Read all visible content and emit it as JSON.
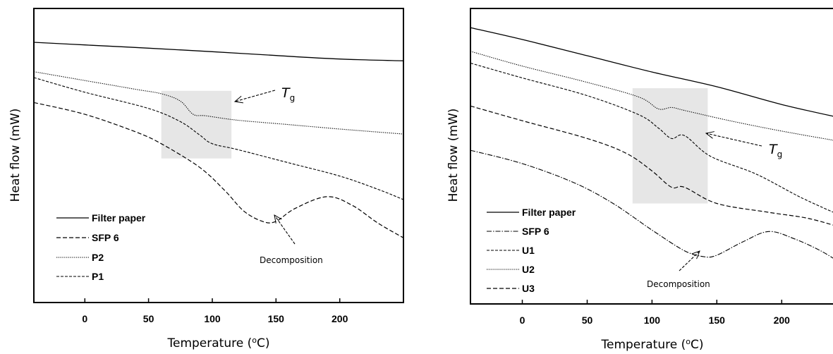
{
  "chart_data": [
    {
      "type": "line",
      "xlabel": "Temperature (°C)",
      "ylabel": "Heat flow (mW)",
      "xticks": [
        0,
        50,
        100,
        150,
        200
      ],
      "xlim": [
        -40,
        250
      ],
      "ylim": [
        0,
        100
      ],
      "ylabel_parts": {
        "text": "Heat flow (mW)"
      },
      "xlabel_parts": {
        "pre": "Temperature (",
        "sup": "o",
        "post": "C)"
      },
      "legend": {
        "position": "bottom-left"
      },
      "series": [
        {
          "name": "Filter paper",
          "style": "solid",
          "points": [
            [
              -40,
              88.5
            ],
            [
              0,
              87.6
            ],
            [
              50,
              86.5
            ],
            [
              100,
              85.3
            ],
            [
              150,
              84.0
            ],
            [
              200,
              82.8
            ],
            [
              250,
              82.2
            ]
          ]
        },
        {
          "name": "SFP 6",
          "style": "dashed",
          "points": [
            [
              -40,
              68
            ],
            [
              0,
              64
            ],
            [
              40,
              58
            ],
            [
              60,
              54
            ],
            [
              90,
              46
            ],
            [
              110,
              38
            ],
            [
              125,
              31
            ],
            [
              140,
              27.5
            ],
            [
              150,
              27.6
            ],
            [
              165,
              32
            ],
            [
              190,
              36
            ],
            [
              210,
              33
            ],
            [
              230,
              27
            ],
            [
              250,
              22
            ]
          ]
        },
        {
          "name": "P2",
          "style": "dotted",
          "points": [
            [
              -40,
              78.5
            ],
            [
              0,
              75.5
            ],
            [
              40,
              72.5
            ],
            [
              60,
              71
            ],
            [
              75,
              68.5
            ],
            [
              85,
              64
            ],
            [
              95,
              63.5
            ],
            [
              120,
              62
            ],
            [
              160,
              60.5
            ],
            [
              200,
              59
            ],
            [
              250,
              57.3
            ]
          ]
        },
        {
          "name": "P1",
          "style": "dashed-fine",
          "points": [
            [
              -40,
              76.5
            ],
            [
              0,
              71.5
            ],
            [
              50,
              66
            ],
            [
              75,
              61.5
            ],
            [
              90,
              57
            ],
            [
              100,
              54
            ],
            [
              120,
              52
            ],
            [
              160,
              47.5
            ],
            [
              200,
              43
            ],
            [
              230,
              38.5
            ],
            [
              250,
              35
            ]
          ]
        }
      ],
      "shaded_region": {
        "x": [
          60,
          115
        ]
      },
      "annotations": [
        {
          "label": "T",
          "sub": "g"
        },
        {
          "label": "Decomposition"
        }
      ]
    },
    {
      "type": "line",
      "xlabel": "Temperature (°C)",
      "ylabel": "Heat flow (mW)",
      "xticks": [
        0,
        50,
        100,
        150,
        200
      ],
      "xlim": [
        -40,
        245
      ],
      "ylim": [
        0,
        100
      ],
      "ylabel_parts": {
        "text": "Heat flow (mW)"
      },
      "xlabel_parts": {
        "pre": "Temperature (",
        "sup": "o",
        "post": "C)"
      },
      "legend": {
        "position": "bottom-left"
      },
      "series": [
        {
          "name": "Filter paper",
          "style": "solid",
          "points": [
            [
              -40,
              93.5
            ],
            [
              0,
              89.5
            ],
            [
              50,
              84
            ],
            [
              100,
              78.5
            ],
            [
              150,
              73.5
            ],
            [
              200,
              67.5
            ],
            [
              245,
              63
            ]
          ]
        },
        {
          "name": "SFP 6",
          "style": "dashdot",
          "points": [
            [
              -40,
              52
            ],
            [
              0,
              47.5
            ],
            [
              40,
              41
            ],
            [
              70,
              34
            ],
            [
              100,
              25
            ],
            [
              125,
              18
            ],
            [
              140,
              16
            ],
            [
              150,
              16.5
            ],
            [
              170,
              21
            ],
            [
              190,
              24.5
            ],
            [
              210,
              22
            ],
            [
              230,
              18
            ],
            [
              245,
              14
            ]
          ]
        },
        {
          "name": "U1",
          "style": "dashed-fine",
          "points": [
            [
              -40,
              81.5
            ],
            [
              0,
              76.5
            ],
            [
              50,
              70.5
            ],
            [
              90,
              64
            ],
            [
              105,
              59.5
            ],
            [
              115,
              56
            ],
            [
              125,
              57
            ],
            [
              145,
              50
            ],
            [
              180,
              44
            ],
            [
              215,
              36
            ],
            [
              245,
              30
            ]
          ]
        },
        {
          "name": "U2",
          "style": "dotted",
          "points": [
            [
              -40,
              85.5
            ],
            [
              0,
              80.5
            ],
            [
              50,
              75
            ],
            [
              90,
              70
            ],
            [
              105,
              66
            ],
            [
              115,
              66.5
            ],
            [
              125,
              65.5
            ],
            [
              160,
              62
            ],
            [
              200,
              58.5
            ],
            [
              245,
              55
            ]
          ]
        },
        {
          "name": "U3",
          "style": "dashed",
          "points": [
            [
              -40,
              67
            ],
            [
              0,
              62
            ],
            [
              50,
              56
            ],
            [
              80,
              51
            ],
            [
              100,
              45
            ],
            [
              115,
              39.5
            ],
            [
              125,
              39.5
            ],
            [
              150,
              34
            ],
            [
              190,
              31
            ],
            [
              220,
              29
            ],
            [
              245,
              26
            ]
          ]
        }
      ],
      "shaded_region": {
        "x": [
          85,
          143
        ]
      },
      "annotations": [
        {
          "label": "T",
          "sub": "g"
        },
        {
          "label": "Decomposition"
        }
      ]
    }
  ]
}
